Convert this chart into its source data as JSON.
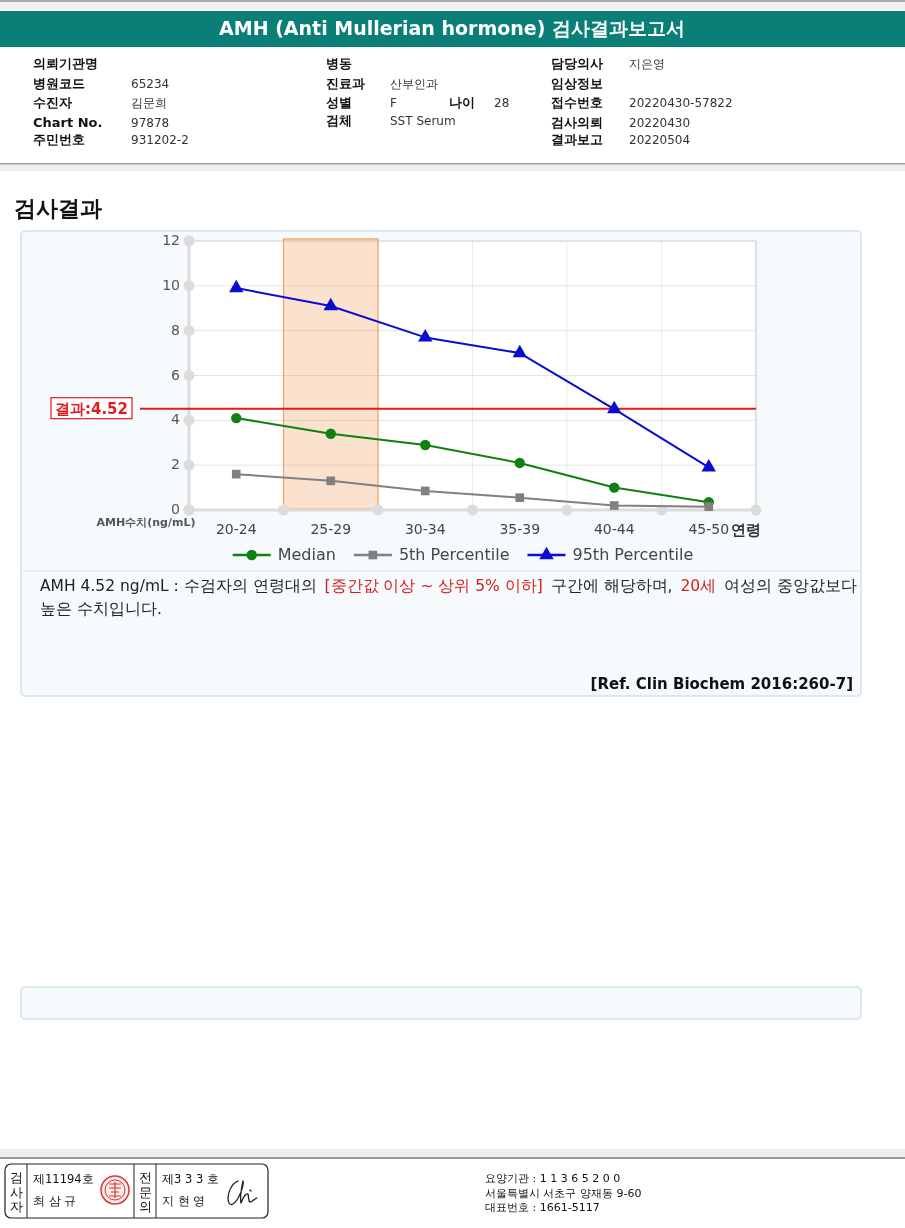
{
  "chart_data": {
    "type": "line",
    "title": "AMH (Anti Mullerian hormone) 검사결과보고서",
    "subtitle": "검사결과",
    "xlabel": "연령",
    "ylabel": "AMH수치(ng/mL)",
    "categories": [
      "20-24",
      "25-29",
      "30-34",
      "35-39",
      "40-44",
      "45-50"
    ],
    "series": [
      {
        "name": "Median",
        "color": "#108010",
        "marker": "circle",
        "values": [
          4.1,
          3.4,
          2.9,
          2.1,
          1.0,
          0.35
        ]
      },
      {
        "name": "5th Percentile",
        "color": "#808080",
        "marker": "square",
        "values": [
          1.6,
          1.3,
          0.85,
          0.55,
          0.2,
          0.15
        ]
      },
      {
        "name": "95th Percentile",
        "color": "#0c0cd0",
        "marker": "triangle",
        "values": [
          9.9,
          9.1,
          7.7,
          7.0,
          4.5,
          1.9
        ]
      }
    ],
    "ylim": [
      0,
      12
    ],
    "yticks": [
      0,
      2,
      4,
      6,
      8,
      10,
      12
    ],
    "grid": true,
    "legend": "bottom",
    "line_style": "solid",
    "ref_lines": [
      {
        "axis": "y",
        "value": 4.52,
        "label": "결과:4.52",
        "color": "#e01c1c"
      }
    ],
    "bands": [
      {
        "axis": "x",
        "from": "25-29",
        "to": "25-29",
        "color": "#f0a060"
      }
    ],
    "annotations": [
      "의뢰기관명",
      "병원코드",
      "65234",
      "수진자",
      "김문희",
      "Chart No.",
      "97878",
      "주민번호",
      "931202-2",
      "병동",
      "진료과",
      "산부인과",
      "성별",
      "F",
      "나이",
      "28",
      "검체",
      "SST Serum",
      "담당의사",
      "지은영",
      "임상정보",
      "접수번호",
      "20220430-57822",
      "검사의뢰",
      "20220430",
      "결과보고",
      "20220504",
      "AMH 4.52 ng/mL : 수검자의 연령대의",
      "[중간값 이상 ~ 상위 5% 이하]",
      "구간에 해당하며,",
      "20세",
      "여성의 중앙값보다",
      "높은 수치입니다.",
      "[Ref. Clin Biochem 2016:260-7]",
      "검사자",
      "제11194호",
      "최 삼 규",
      "전문의",
      "제3 3 3 호",
      "지 현 영",
      "요양기관 : 1 1 3 6 5 2 0 0",
      "서울특별시 서초구 양재동 9-60",
      "대표번호 : 1661-5117"
    ]
  }
}
